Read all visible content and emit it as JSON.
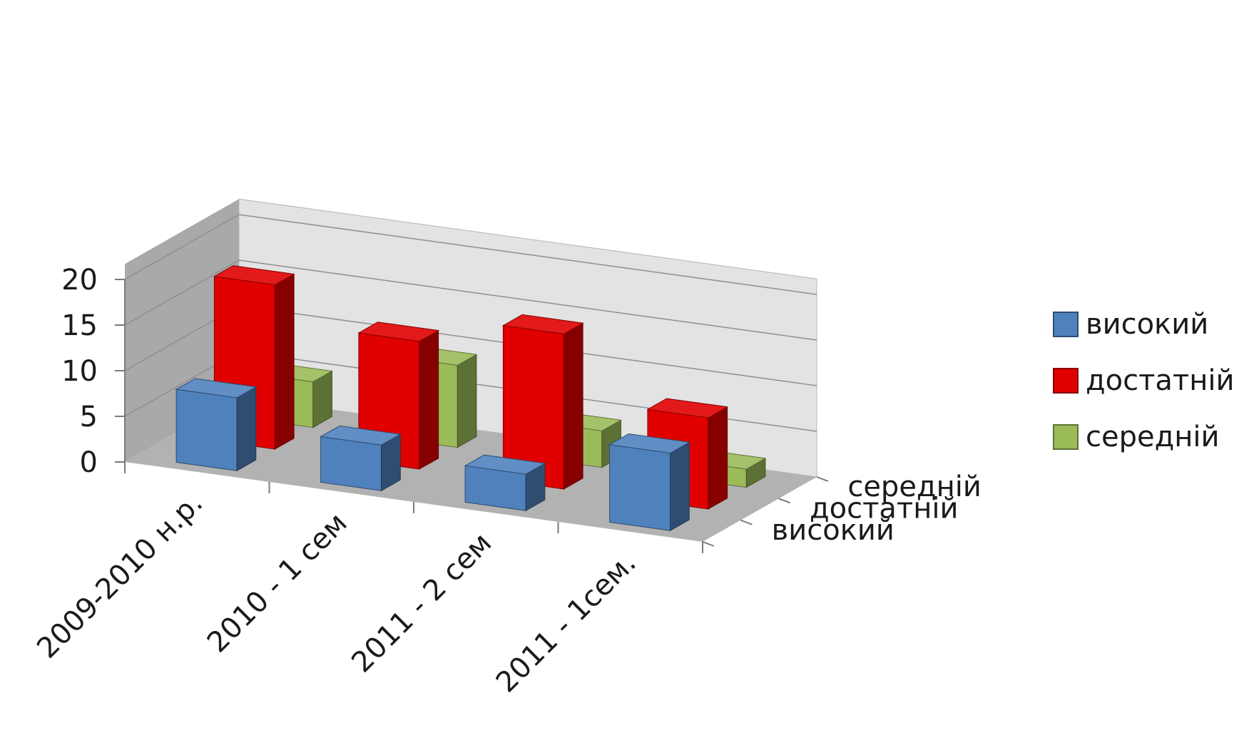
{
  "chart_data": {
    "type": "bar",
    "title": "",
    "xlabel": "",
    "ylabel": "",
    "ylim": [
      0,
      20
    ],
    "yticks": [
      0,
      5,
      10,
      15,
      20
    ],
    "grid": true,
    "legend_position": "right",
    "categories": [
      "2009-2010 н.р.",
      "2010 - 1 сем",
      "2011 - 2 сем",
      "2011 - 1сем."
    ],
    "series": [
      {
        "name": "високий",
        "color": "#4f81bd",
        "values": [
          8,
          5,
          4,
          8.5
        ]
      },
      {
        "name": "достатній",
        "color": "#e00000",
        "values": [
          18,
          14,
          17,
          10
        ]
      },
      {
        "name": "середній",
        "color": "#9bbb59",
        "values": [
          5,
          9,
          4,
          2
        ]
      }
    ],
    "depth_labels": [
      "високий",
      "достатній",
      "середній"
    ]
  }
}
